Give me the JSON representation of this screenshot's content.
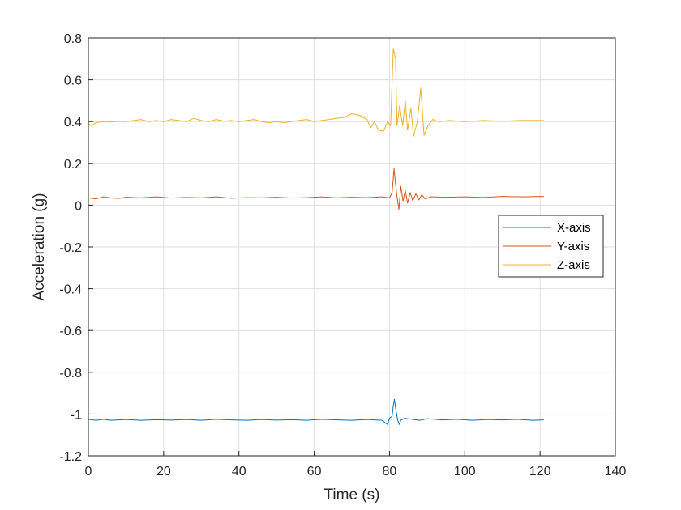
{
  "chart_data": {
    "type": "line",
    "title": "",
    "xlabel": "Time (s)",
    "ylabel": "Acceleration (g)",
    "xlim": [
      0,
      140
    ],
    "ylim": [
      -1.2,
      0.8
    ],
    "xticks": [
      0,
      20,
      40,
      60,
      80,
      100,
      120,
      140
    ],
    "yticks": [
      -1.2,
      -1,
      -0.8,
      -0.6,
      -0.4,
      -0.2,
      0,
      0.2,
      0.4,
      0.6,
      0.8
    ],
    "grid": true,
    "legend_position": "right",
    "series": [
      {
        "name": "X-axis",
        "color": "#0072BD",
        "x": [
          0,
          2,
          4,
          6,
          8,
          10,
          14,
          18,
          22,
          26,
          30,
          34,
          38,
          42,
          46,
          50,
          54,
          58,
          62,
          66,
          70,
          74,
          78,
          79.5,
          80,
          80.7,
          81,
          81.3,
          81.7,
          82.2,
          82.6,
          83,
          84,
          86,
          88,
          90,
          94,
          98,
          102,
          106,
          110,
          114,
          118,
          121
        ],
        "y": [
          -1.025,
          -1.03,
          -1.025,
          -1.03,
          -1.028,
          -1.026,
          -1.03,
          -1.027,
          -1.029,
          -1.026,
          -1.03,
          -1.025,
          -1.028,
          -1.03,
          -1.026,
          -1.029,
          -1.027,
          -1.03,
          -1.025,
          -1.028,
          -1.03,
          -1.026,
          -1.03,
          -1.05,
          -1.02,
          -1.01,
          -0.96,
          -0.93,
          -0.98,
          -1.03,
          -1.05,
          -1.03,
          -1.02,
          -1.025,
          -1.03,
          -1.022,
          -1.028,
          -1.025,
          -1.03,
          -1.026,
          -1.028,
          -1.025,
          -1.03,
          -1.028
        ]
      },
      {
        "name": "Y-axis",
        "color": "#D95319",
        "x": [
          0,
          2,
          4,
          6,
          8,
          10,
          14,
          18,
          22,
          26,
          30,
          34,
          38,
          42,
          46,
          50,
          54,
          58,
          62,
          66,
          70,
          74,
          78,
          80,
          80.7,
          81.2,
          81.6,
          82,
          82.5,
          83,
          83.6,
          84.2,
          84.8,
          85.5,
          86.2,
          87,
          87.8,
          88.6,
          89.5,
          91,
          95,
          100,
          105,
          110,
          115,
          121
        ],
        "y": [
          0.035,
          0.03,
          0.04,
          0.035,
          0.032,
          0.038,
          0.035,
          0.04,
          0.034,
          0.037,
          0.035,
          0.04,
          0.033,
          0.036,
          0.035,
          0.038,
          0.034,
          0.036,
          0.04,
          0.035,
          0.038,
          0.036,
          0.04,
          0.035,
          0.06,
          0.175,
          0.1,
          0.04,
          -0.02,
          0.09,
          0.02,
          0.07,
          0.01,
          0.06,
          0.02,
          0.055,
          0.025,
          0.05,
          0.03,
          0.04,
          0.038,
          0.04,
          0.037,
          0.042,
          0.04,
          0.042
        ]
      },
      {
        "name": "Z-axis",
        "color": "#EDB120",
        "x": [
          0,
          1,
          2,
          4,
          6,
          8,
          10,
          12,
          14,
          16,
          18,
          20,
          22,
          24,
          26,
          28,
          30,
          32,
          34,
          36,
          38,
          40,
          42,
          44,
          46,
          48,
          50,
          52,
          54,
          56,
          58,
          60,
          62,
          64,
          66,
          68,
          70,
          72,
          74,
          75,
          76,
          77,
          78.4,
          79.5,
          80.3,
          81,
          81.6,
          82,
          82.7,
          83.5,
          84.2,
          84.8,
          85.7,
          86.4,
          87.4,
          88.3,
          89.2,
          90.2,
          91.5,
          93,
          96,
          100,
          105,
          110,
          115,
          121
        ],
        "y": [
          0.39,
          0.38,
          0.395,
          0.4,
          0.398,
          0.402,
          0.4,
          0.405,
          0.41,
          0.4,
          0.405,
          0.4,
          0.41,
          0.405,
          0.4,
          0.415,
          0.405,
          0.4,
          0.41,
          0.402,
          0.405,
          0.4,
          0.405,
          0.41,
          0.4,
          0.395,
          0.4,
          0.395,
          0.4,
          0.405,
          0.41,
          0.4,
          0.405,
          0.41,
          0.415,
          0.42,
          0.438,
          0.43,
          0.41,
          0.37,
          0.4,
          0.36,
          0.353,
          0.4,
          0.38,
          0.75,
          0.7,
          0.38,
          0.477,
          0.38,
          0.5,
          0.36,
          0.465,
          0.33,
          0.4,
          0.56,
          0.335,
          0.38,
          0.41,
          0.4,
          0.405,
          0.4,
          0.405,
          0.402,
          0.405,
          0.405
        ]
      }
    ]
  }
}
